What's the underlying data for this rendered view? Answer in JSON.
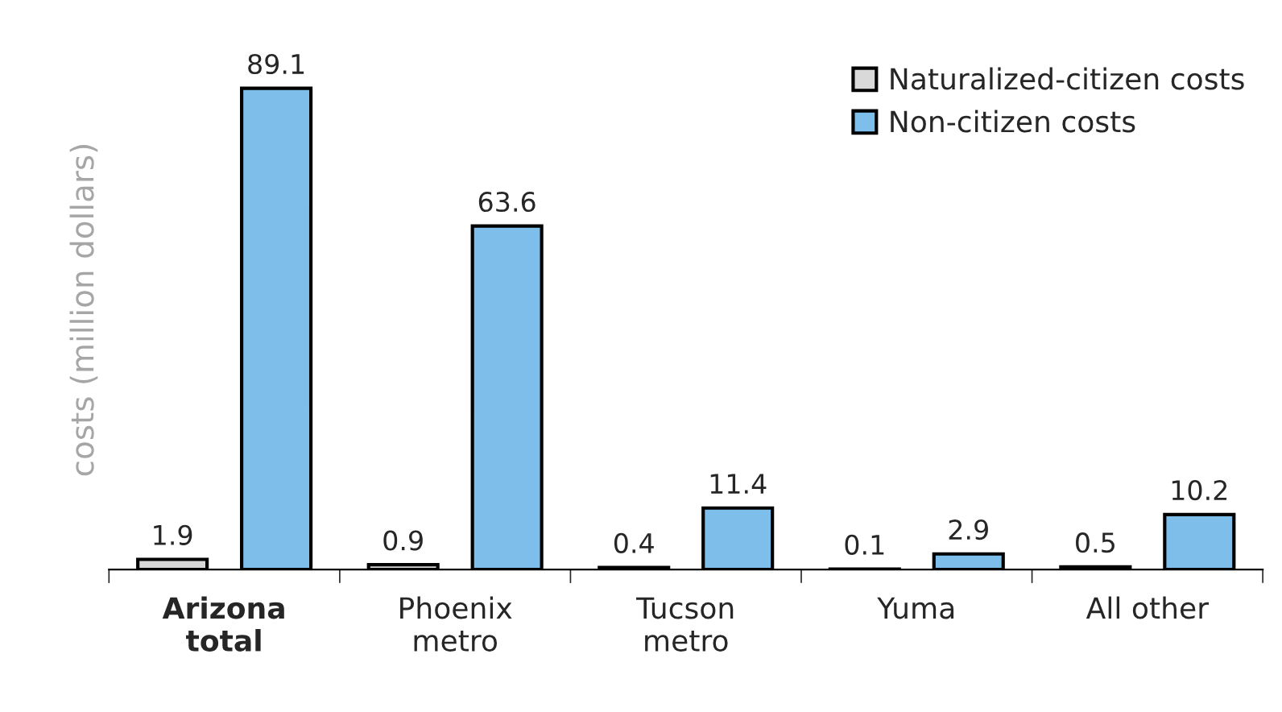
{
  "chart_data": {
    "type": "bar",
    "ylabel": "costs (million dollars)",
    "categories": [
      "Arizona\ntotal",
      "Phoenix\nmetro",
      "Tucson\nmetro",
      "Yuma",
      "All other"
    ],
    "series": [
      {
        "name": "Naturalized-citizen costs",
        "color": "#d9d9d9",
        "values": [
          1.9,
          0.9,
          0.4,
          0.1,
          0.5
        ]
      },
      {
        "name": "Non-citizen costs",
        "color": "#7dbfea",
        "values": [
          89.1,
          63.6,
          11.4,
          2.9,
          10.2
        ]
      }
    ],
    "data_labels": true,
    "legend": "top right",
    "grid": false
  }
}
